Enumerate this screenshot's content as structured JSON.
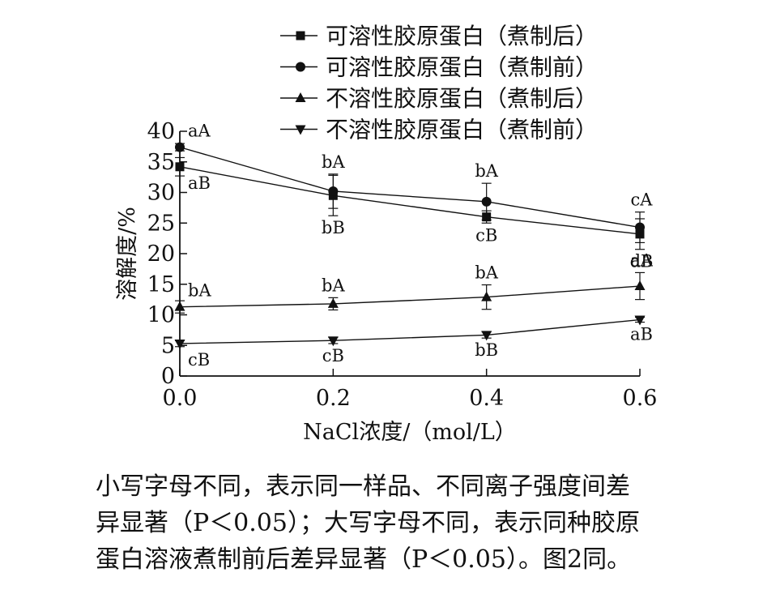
{
  "chart_data": {
    "type": "line",
    "xlabel": "NaCl浓度/（mol/L）",
    "ylabel": "溶解度/%",
    "x": [
      0.0,
      0.2,
      0.4,
      0.6
    ],
    "x_tick_labels": [
      "0.0",
      "0.2",
      "0.4",
      "0.6"
    ],
    "xlim": [
      0.0,
      0.6
    ],
    "ylim": [
      0,
      40
    ],
    "y_ticks": [
      0,
      5,
      10,
      15,
      20,
      25,
      30,
      35,
      40
    ],
    "grid": false,
    "legend_position": "top",
    "series": [
      {
        "name": "可溶性胶原蛋白（煮制后）",
        "marker": "square",
        "values": [
          34.2,
          29.5,
          26.0,
          23.2
        ],
        "errors": [
          1.5,
          3.3,
          1.0,
          2.5
        ],
        "labels": [
          "aB",
          "bB",
          "cB",
          "dB"
        ],
        "label_side": [
          "below",
          "below",
          "below",
          "below"
        ]
      },
      {
        "name": "可溶性胶原蛋白（煮制前）",
        "marker": "circle",
        "values": [
          37.4,
          30.2,
          28.5,
          24.3
        ],
        "errors": [
          0.6,
          2.8,
          3.0,
          2.5
        ],
        "labels": [
          "aA",
          "bA",
          "bA",
          "cA"
        ],
        "label_side": [
          "above",
          "above",
          "above",
          "above"
        ]
      },
      {
        "name": "不溶性胶原蛋白（煮制后）",
        "marker": "triangle-up",
        "values": [
          11.3,
          11.8,
          12.9,
          14.7
        ],
        "errors": [
          1.0,
          1.0,
          2.0,
          2.2
        ],
        "labels": [
          "bA",
          "bA",
          "bA",
          "aA"
        ],
        "label_side": [
          "above",
          "above",
          "above",
          "above"
        ]
      },
      {
        "name": "不溶性胶原蛋白（煮制前）",
        "marker": "triangle-down",
        "values": [
          5.3,
          5.8,
          6.7,
          9.2
        ],
        "errors": [
          0.5,
          0.5,
          0.5,
          0.4
        ],
        "labels": [
          "cB",
          "cB",
          "bB",
          "aB"
        ],
        "label_side": [
          "below",
          "below",
          "below",
          "below"
        ]
      }
    ]
  },
  "caption": {
    "lines": [
      "小写字母不同，表示同一样品、不同离子强度间差",
      "异显著（P＜0.05）；大写字母不同，表示同种胶原",
      "蛋白溶液煮制前后差异显著（P＜0.05）。图2同。"
    ]
  }
}
